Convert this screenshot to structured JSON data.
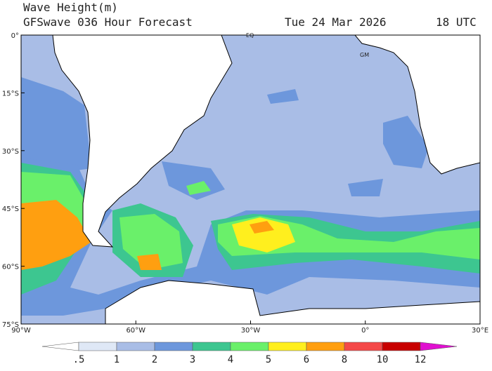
{
  "header": {
    "title": "Wave Height(m)",
    "subtitle": "GFSwave 036 Hour Forecast",
    "date": "Tue 24 Mar 2026",
    "time": "18 UTC"
  },
  "map": {
    "lat_labels": [
      "0°",
      "15°S",
      "30°S",
      "45°S",
      "60°S",
      "75°S"
    ],
    "lon_labels": [
      "90°W",
      "60°W",
      "30°W",
      "0°",
      "30°E"
    ],
    "annotations": [
      "EQ",
      "GM"
    ]
  },
  "colorbar": {
    "labels": [
      ".5",
      "1",
      "2",
      "3",
      "4",
      "5",
      "6",
      "8",
      "10",
      "12"
    ],
    "colors": [
      "#ffffff",
      "#dfe8f6",
      "#a9bde6",
      "#6d97dc",
      "#3dc690",
      "#6af06a",
      "#ffef1e",
      "#ff9f10",
      "#f44848",
      "#c80000",
      "#e010d0"
    ]
  }
}
